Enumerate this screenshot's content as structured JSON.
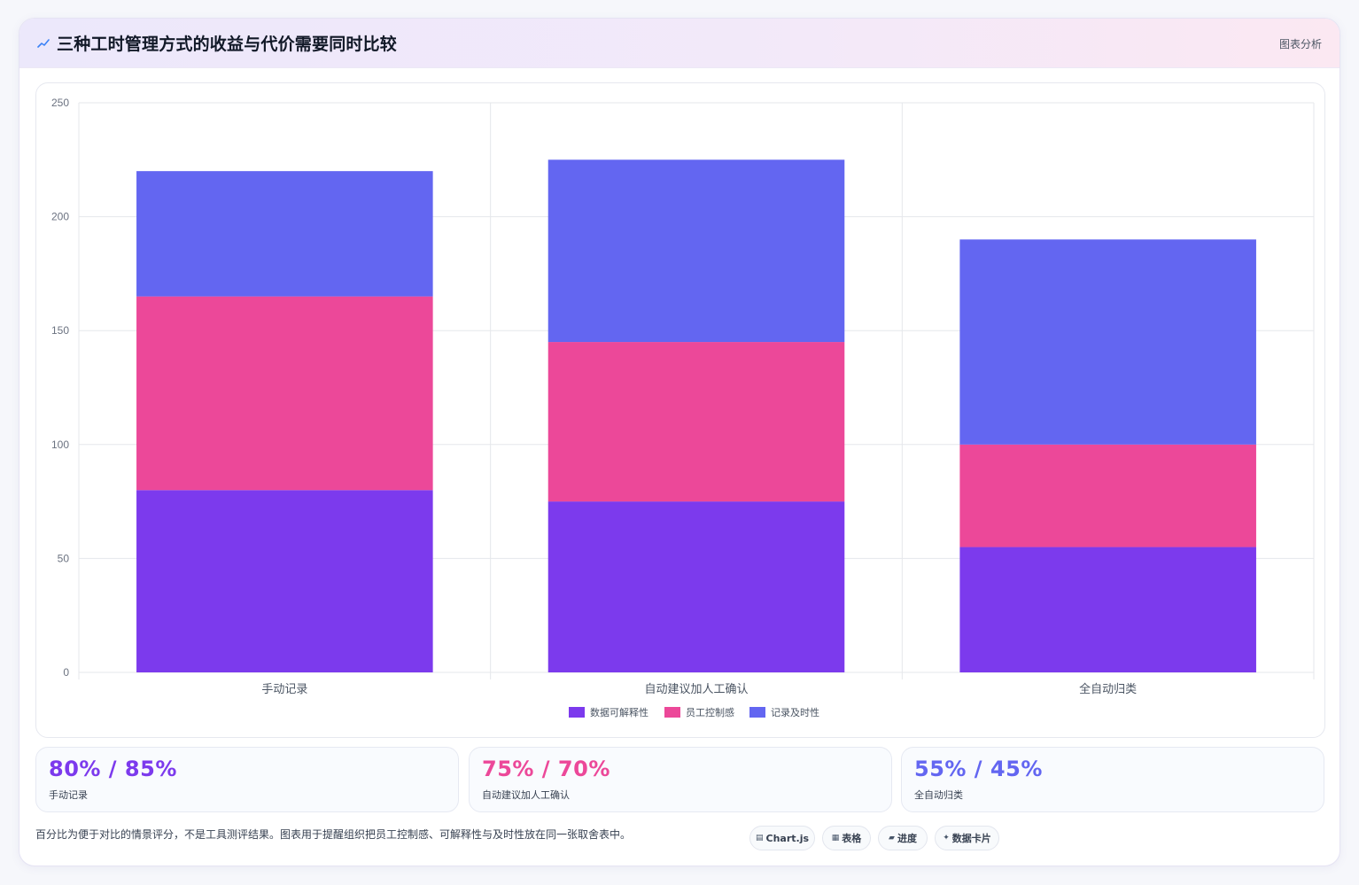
{
  "header": {
    "title": "三种工时管理方式的收益与代价需要同时比较",
    "tag": "图表分析",
    "icon": "trend-line-icon"
  },
  "colors": {
    "explainability": "#7c3aed",
    "control": "#ec4899",
    "timeliness": "#6366f1",
    "grid": "#e5e7eb",
    "tick": "#6b7280"
  },
  "chart_data": {
    "type": "bar",
    "stacked": true,
    "categories": [
      "手动记录",
      "自动建议加人工确认",
      "全自动归类"
    ],
    "series": [
      {
        "name": "数据可解释性",
        "values": [
          80,
          75,
          55
        ],
        "color": "#7c3aed"
      },
      {
        "name": "员工控制感",
        "values": [
          85,
          70,
          45
        ],
        "color": "#ec4899"
      },
      {
        "name": "记录及时性",
        "values": [
          55,
          80,
          90
        ],
        "color": "#6366f1"
      }
    ],
    "yticks": [
      0,
      50,
      100,
      150,
      200,
      250
    ],
    "ylim": [
      0,
      250
    ],
    "legend_position": "bottom",
    "grid": true
  },
  "stats": [
    {
      "value": "80% / 85%",
      "label": "手动记录",
      "color": "#7c3aed"
    },
    {
      "value": "75% / 70%",
      "label": "自动建议加人工确认",
      "color": "#ec4899"
    },
    {
      "value": "55% / 45%",
      "label": "全自动归类",
      "color": "#6366f1"
    }
  ],
  "footnote": "百分比为便于对比的情景评分，不是工具测评结果。图表用于提醒组织把员工控制感、可解释性与及时性放在同一张取舍表中。",
  "chips": [
    {
      "glyph": "▤",
      "label": "Chart.js",
      "icon": "chart-icon"
    },
    {
      "glyph": "▦",
      "label": "表格",
      "icon": "table-icon"
    },
    {
      "glyph": "▰",
      "label": "进度",
      "icon": "progress-icon"
    },
    {
      "glyph": "✦",
      "label": "数据卡片",
      "icon": "sparkle-icon"
    }
  ]
}
